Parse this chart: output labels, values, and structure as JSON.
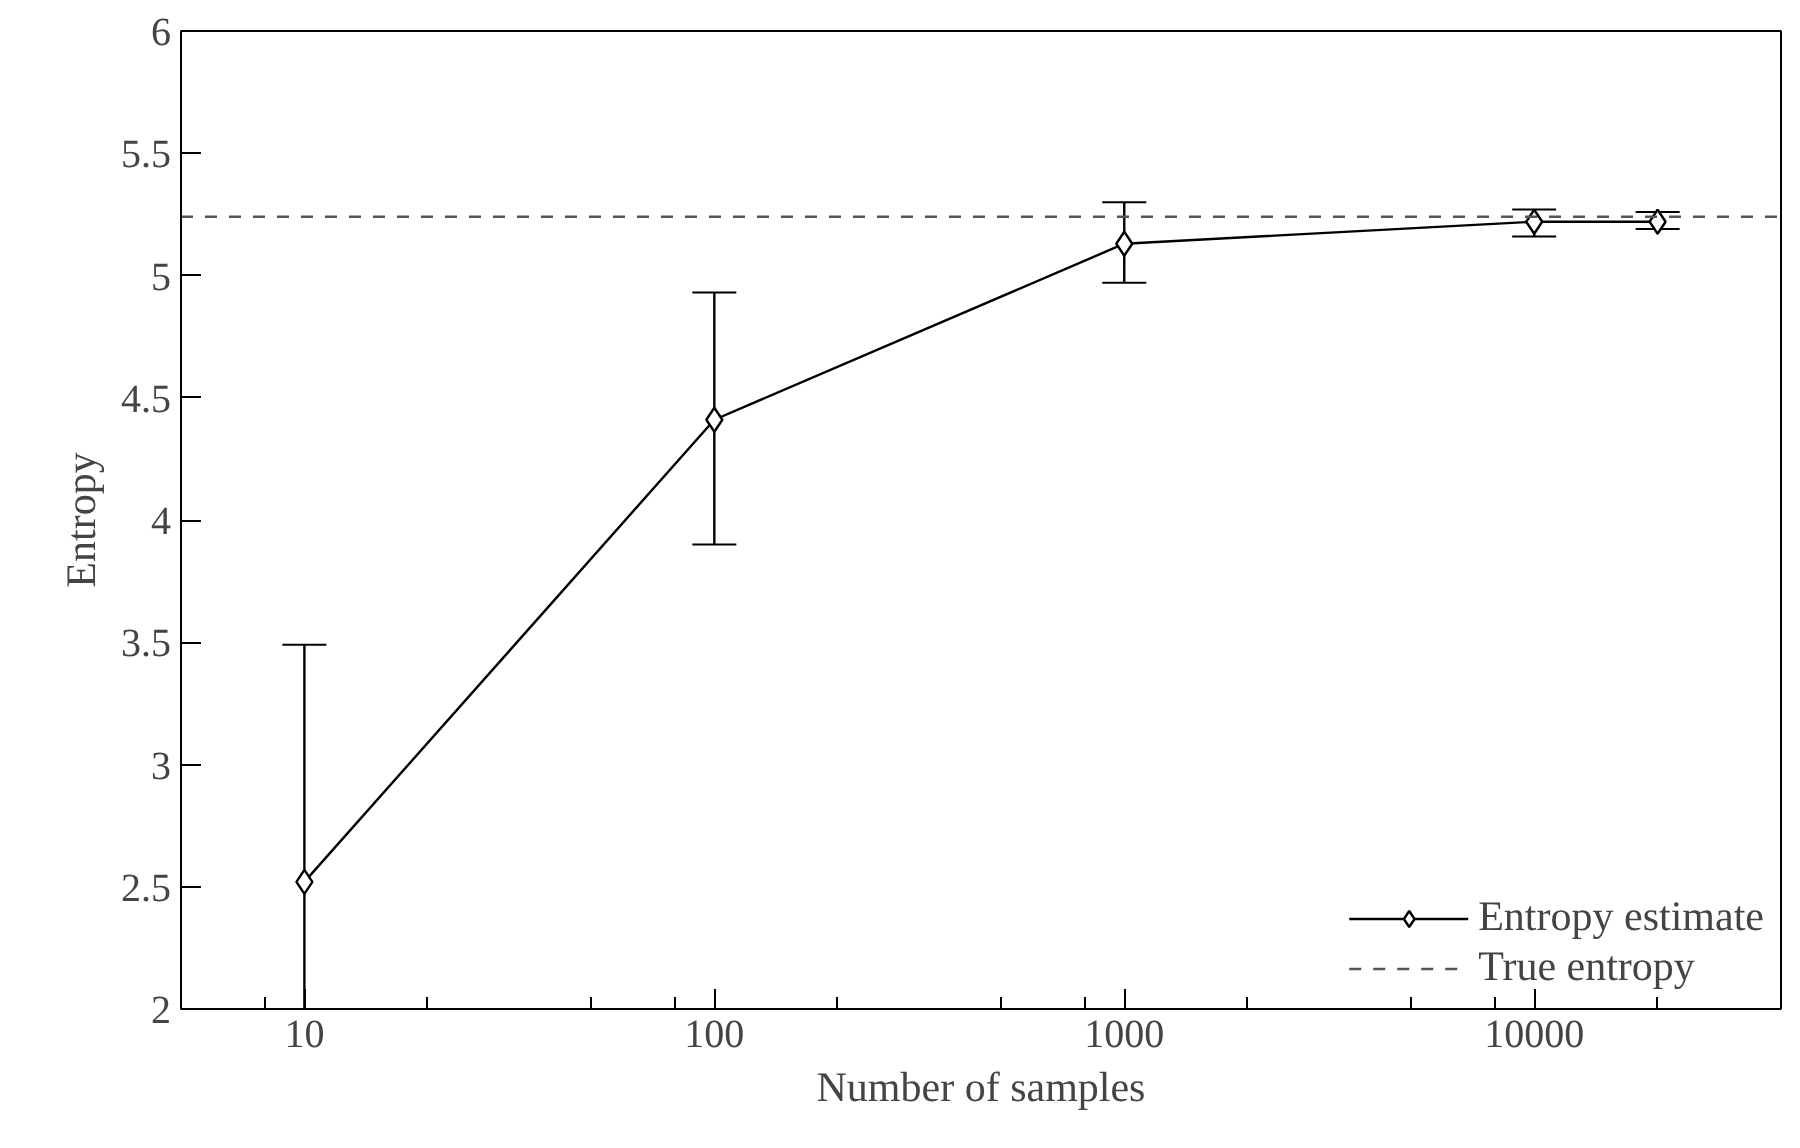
{
  "chart_data": {
    "type": "line",
    "xlabel": "Number of samples",
    "ylabel": "Entropy",
    "log": "x",
    "grid": false,
    "legend": "bottom right",
    "marker": "diamond",
    "line_style": "solid",
    "x": [
      10,
      100,
      1000,
      10000,
      20000
    ],
    "series": [
      {
        "name": "Entropy estimate",
        "color": "#000000",
        "values": [
          2.52,
          4.41,
          5.13,
          5.22,
          5.22
        ],
        "errors": [
          [
            2.0,
            3.49
          ],
          [
            3.9,
            4.93
          ],
          [
            4.97,
            5.3
          ],
          [
            5.16,
            5.27
          ],
          [
            5.19,
            5.26
          ]
        ]
      }
    ],
    "ref_lines": [
      {
        "axis": "y",
        "value": 5.24,
        "label": "True entropy",
        "line_style": "dashed",
        "color": "#555555"
      }
    ],
    "xlim": [
      5,
      40000
    ],
    "ylim": [
      2,
      6
    ],
    "xticks": [
      {
        "value": 8,
        "label": null
      },
      10,
      {
        "value": 20,
        "label": null
      },
      {
        "value": 50,
        "label": null
      },
      {
        "value": 80,
        "label": null
      },
      100,
      {
        "value": 200,
        "label": null
      },
      {
        "value": 500,
        "label": null
      },
      {
        "value": 800,
        "label": null
      },
      1000,
      {
        "value": 2000,
        "label": null
      },
      {
        "value": 5000,
        "label": null
      },
      {
        "value": 8000,
        "label": null
      },
      10000,
      {
        "value": 20000,
        "label": null
      }
    ],
    "yticks": [
      2,
      2.5,
      3,
      3.5,
      4,
      4.5,
      5,
      5.5,
      6
    ]
  }
}
